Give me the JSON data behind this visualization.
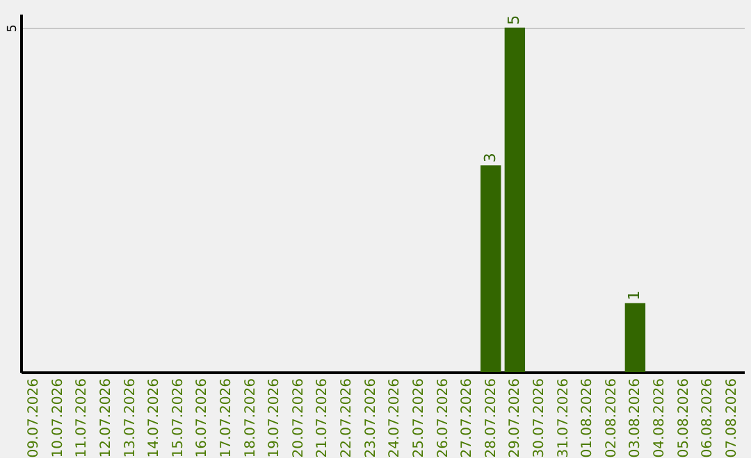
{
  "chart_data": {
    "type": "bar",
    "categories": [
      "09.07.2026",
      "10.07.2026",
      "11.07.2026",
      "12.07.2026",
      "13.07.2026",
      "14.07.2026",
      "15.07.2026",
      "16.07.2026",
      "17.07.2026",
      "18.07.2026",
      "19.07.2026",
      "20.07.2026",
      "21.07.2026",
      "22.07.2026",
      "23.07.2026",
      "24.07.2026",
      "25.07.2026",
      "26.07.2026",
      "27.07.2026",
      "28.07.2026",
      "29.07.2026",
      "30.07.2026",
      "31.07.2026",
      "01.08.2026",
      "02.08.2026",
      "03.08.2026",
      "04.08.2026",
      "05.08.2026",
      "06.08.2026",
      "07.08.2026"
    ],
    "values": [
      null,
      null,
      null,
      null,
      null,
      null,
      null,
      null,
      null,
      null,
      null,
      null,
      null,
      null,
      null,
      null,
      null,
      null,
      null,
      3,
      5,
      null,
      null,
      null,
      null,
      1,
      null,
      null,
      null,
      null
    ],
    "data_labels": true,
    "color": "#336600",
    "ylim": [
      0,
      5.2
    ],
    "yticks": [
      5
    ],
    "grid": "y"
  }
}
